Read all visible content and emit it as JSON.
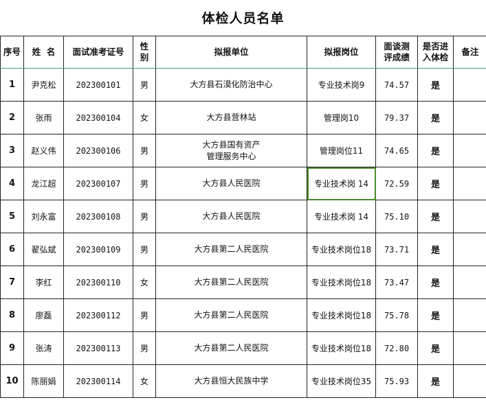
{
  "title": "体检人员名单",
  "headers": {
    "seq": "序号",
    "name": "姓  名",
    "exam_id": "面试准考证号",
    "gender": "性\n别",
    "unit": "拟报单位",
    "post": "拟报岗位",
    "score": "面谈测\n评成绩",
    "physical": "是否进\n入体检",
    "note": "备注"
  },
  "rows": [
    {
      "seq": "1",
      "name": "尹克松",
      "exam_id": "202300101",
      "gender": "男",
      "unit": "大方县石漠化防治中心",
      "post": "专业技术岗9",
      "score": "74.57",
      "physical": "是",
      "note": ""
    },
    {
      "seq": "2",
      "name": "张雨",
      "exam_id": "202300104",
      "gender": "女",
      "unit": "大方县营林站",
      "post": "管理岗10",
      "score": "79.37",
      "physical": "是",
      "note": ""
    },
    {
      "seq": "3",
      "name": "赵义伟",
      "exam_id": "202300106",
      "gender": "男",
      "unit": "大方县国有资产\n管理服务中心",
      "post": "管理岗位11",
      "score": "74.65",
      "physical": "是",
      "note": ""
    },
    {
      "seq": "4",
      "name": "龙江超",
      "exam_id": "202300107",
      "gender": "男",
      "unit": "大方县人民医院",
      "post": "专业技术岗 14",
      "score": "72.59",
      "physical": "是",
      "note": ""
    },
    {
      "seq": "5",
      "name": "刘永富",
      "exam_id": "202300108",
      "gender": "男",
      "unit": "大方县人民医院",
      "post": "专业技术岗 14",
      "score": "75.10",
      "physical": "是",
      "note": ""
    },
    {
      "seq": "6",
      "name": "翟弘斌",
      "exam_id": "202300109",
      "gender": "男",
      "unit": "大方县第二人民医院",
      "post": "专业技术岗位18",
      "score": "73.71",
      "physical": "是",
      "note": ""
    },
    {
      "seq": "7",
      "name": "李红",
      "exam_id": "202300110",
      "gender": "女",
      "unit": "大方县第二人民医院",
      "post": "专业技术岗位18",
      "score": "73.47",
      "physical": "是",
      "note": ""
    },
    {
      "seq": "8",
      "name": "廖磊",
      "exam_id": "202300112",
      "gender": "男",
      "unit": "大方县第二人民医院",
      "post": "专业技术岗位18",
      "score": "75.78",
      "physical": "是",
      "note": ""
    },
    {
      "seq": "9",
      "name": "张涛",
      "exam_id": "202300113",
      "gender": "男",
      "unit": "大方县第二人民医院",
      "post": "专业技术岗位18",
      "score": "72.80",
      "physical": "是",
      "note": ""
    },
    {
      "seq": "10",
      "name": "陈丽娟",
      "exam_id": "202300114",
      "gender": "女",
      "unit": "大方县恒大民族中学",
      "post": "专业技术岗位35",
      "score": "75.93",
      "physical": "是",
      "note": ""
    }
  ],
  "selected_cell_color": "#4a8a2a"
}
